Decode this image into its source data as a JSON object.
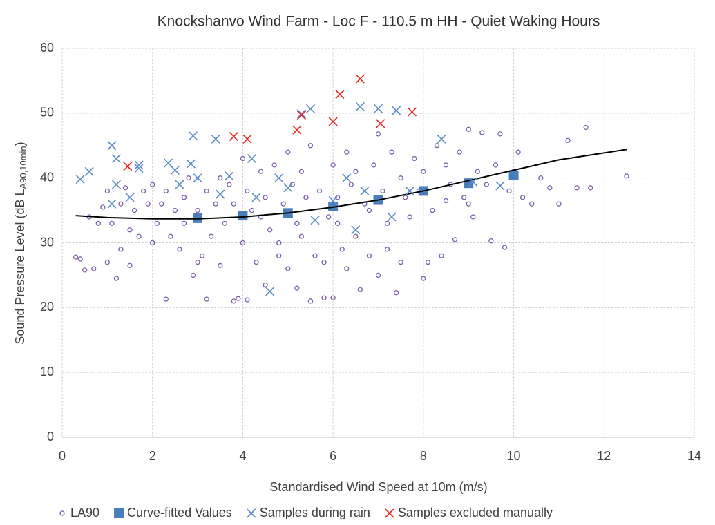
{
  "chart_data": {
    "type": "scatter",
    "title": "Knockshanvo Wind Farm - Loc F - 110.5 m HH - Quiet Waking Hours",
    "x_label": "Standardised Wind Speed at 10m (m/s)",
    "y_label": {
      "text": "Sound Pressure Level (dB L",
      "subscript": "A90,10min",
      "suffix": ")"
    },
    "xlim": [
      0,
      14
    ],
    "xticks": [
      0,
      2,
      4,
      6,
      8,
      10,
      12,
      14
    ],
    "ylim": [
      0,
      60
    ],
    "yticks": [
      0,
      10,
      20,
      30,
      40,
      50,
      60
    ],
    "grid": true,
    "legend": "bottom",
    "series": [
      {
        "name": "LA90",
        "color": "#7b5ea7",
        "marker": "circle",
        "x": [
          0.3,
          0.4,
          0.5,
          0.6,
          0.7,
          0.8,
          0.9,
          1.0,
          1.0,
          1.1,
          1.2,
          1.3,
          1.3,
          1.4,
          1.5,
          1.6,
          1.7,
          1.8,
          1.9,
          2.0,
          2.1,
          2.2,
          2.3,
          2.3,
          2.4,
          2.5,
          2.6,
          2.7,
          2.8,
          2.9,
          3.0,
          3.1,
          3.2,
          3.2,
          3.3,
          3.4,
          3.5,
          3.5,
          3.6,
          3.7,
          3.8,
          3.8,
          3.9,
          4.0,
          4.0,
          4.1,
          4.1,
          4.2,
          4.3,
          4.4,
          4.5,
          4.5,
          4.6,
          4.7,
          4.8,
          4.9,
          5.0,
          5.0,
          5.1,
          5.2,
          5.3,
          5.3,
          5.4,
          5.5,
          5.5,
          5.6,
          5.7,
          5.8,
          5.9,
          6.0,
          6.0,
          6.1,
          6.2,
          6.3,
          6.3,
          6.4,
          6.5,
          6.5,
          6.6,
          6.7,
          6.8,
          6.9,
          7.0,
          7.0,
          7.1,
          7.2,
          7.3,
          7.4,
          7.5,
          7.6,
          7.7,
          7.8,
          7.9,
          8.0,
          8.0,
          8.1,
          8.2,
          8.3,
          8.4,
          8.5,
          8.6,
          8.7,
          8.8,
          8.9,
          9.0,
          9.1,
          9.2,
          9.3,
          9.4,
          9.5,
          9.6,
          9.7,
          9.8,
          9.9,
          10.0,
          10.1,
          10.2,
          10.4,
          10.6,
          10.8,
          11.0,
          11.2,
          11.4,
          11.6,
          11.7,
          12.5,
          2.0,
          3.0,
          4.4,
          5.2,
          6.1,
          6.8,
          7.2,
          8.5,
          9.0,
          1.5,
          2.7,
          4.8,
          5.8,
          7.5
        ],
        "values": [
          27.8,
          27.5,
          25.8,
          34,
          26,
          33,
          35.5,
          27,
          38,
          33,
          24.5,
          29,
          36,
          38.5,
          32,
          35,
          31,
          38,
          36,
          39,
          33,
          36,
          21.3,
          38,
          31,
          35,
          29,
          37,
          40,
          25,
          35,
          28,
          21.3,
          38,
          31,
          36,
          26.5,
          40,
          33,
          39,
          21,
          36,
          21.4,
          43,
          30,
          38,
          21.2,
          35,
          27,
          41,
          23.5,
          37,
          32,
          42,
          28,
          36,
          44,
          26,
          39,
          23,
          31,
          41,
          37,
          21,
          45,
          28,
          38,
          21.5,
          34,
          42,
          21.5,
          37,
          29,
          44,
          26,
          39,
          31,
          41,
          22.8,
          36,
          28,
          42,
          46.8,
          25,
          38,
          33,
          44,
          22.3,
          27,
          37,
          34,
          43,
          38,
          24.5,
          41,
          27,
          35,
          45,
          28,
          42,
          39,
          30.5,
          44,
          37,
          47.5,
          34,
          41,
          47,
          39,
          30.3,
          42,
          46.8,
          29.3,
          38,
          41,
          44,
          37,
          36,
          40,
          38.5,
          36,
          45.8,
          38.5,
          47.8,
          38.5,
          40.3,
          30,
          27,
          34,
          33,
          33,
          35,
          29,
          36.5,
          36,
          26.5,
          33,
          30,
          27,
          40
        ]
      },
      {
        "name": "Curve-fitted Values",
        "color": "#4a7ebb",
        "marker": "square",
        "x": [
          3,
          4,
          5,
          6,
          7,
          8,
          9,
          10
        ],
        "values": [
          33.8,
          34.2,
          34.6,
          35.6,
          36.6,
          38,
          39.2,
          40.4
        ]
      },
      {
        "name": "Samples during rain",
        "color": "#5b8cc8",
        "marker": "x",
        "x": [
          0.4,
          0.6,
          1.1,
          1.2,
          1.1,
          1.2,
          1.7,
          1.7,
          2.35,
          2.5,
          2.85,
          2.9,
          3.0,
          3.4,
          3.7,
          4.2,
          4.3,
          4.6,
          4.8,
          5.3,
          5.5,
          5.6,
          6.3,
          6.5,
          6.6,
          6.7,
          7.0,
          7.4,
          7.3,
          8.4,
          9.1,
          9.7,
          1.5,
          2.6,
          3.5,
          5.0,
          6.0,
          7.7
        ],
        "values": [
          39.8,
          41,
          45,
          43,
          36,
          39,
          42,
          41.5,
          42.3,
          41.2,
          42.2,
          46.5,
          40,
          46,
          40.3,
          43,
          37,
          22.5,
          40,
          49.9,
          50.7,
          33.5,
          40,
          32,
          51,
          38,
          50.7,
          50.4,
          34,
          46,
          39.4,
          38.8,
          37,
          39,
          37.5,
          38.5,
          36.5,
          38
        ]
      },
      {
        "name": "Samples excluded manually",
        "color": "#e8251e",
        "marker": "x",
        "x": [
          1.45,
          3.8,
          4.1,
          5.2,
          5.3,
          6.0,
          6.15,
          6.6,
          7.05,
          7.75
        ],
        "values": [
          41.8,
          46.4,
          46,
          47.4,
          49.7,
          48.7,
          52.9,
          55.3,
          48.4,
          50.2
        ]
      }
    ],
    "trend": {
      "color": "#000000",
      "x": [
        0.3,
        1,
        2,
        3,
        4,
        5,
        6,
        7,
        8,
        9,
        10,
        11,
        12.5
      ],
      "values": [
        34.2,
        33.9,
        33.7,
        33.7,
        34.0,
        34.6,
        35.5,
        36.6,
        38.0,
        39.6,
        41.2,
        42.8,
        44.4
      ]
    }
  }
}
